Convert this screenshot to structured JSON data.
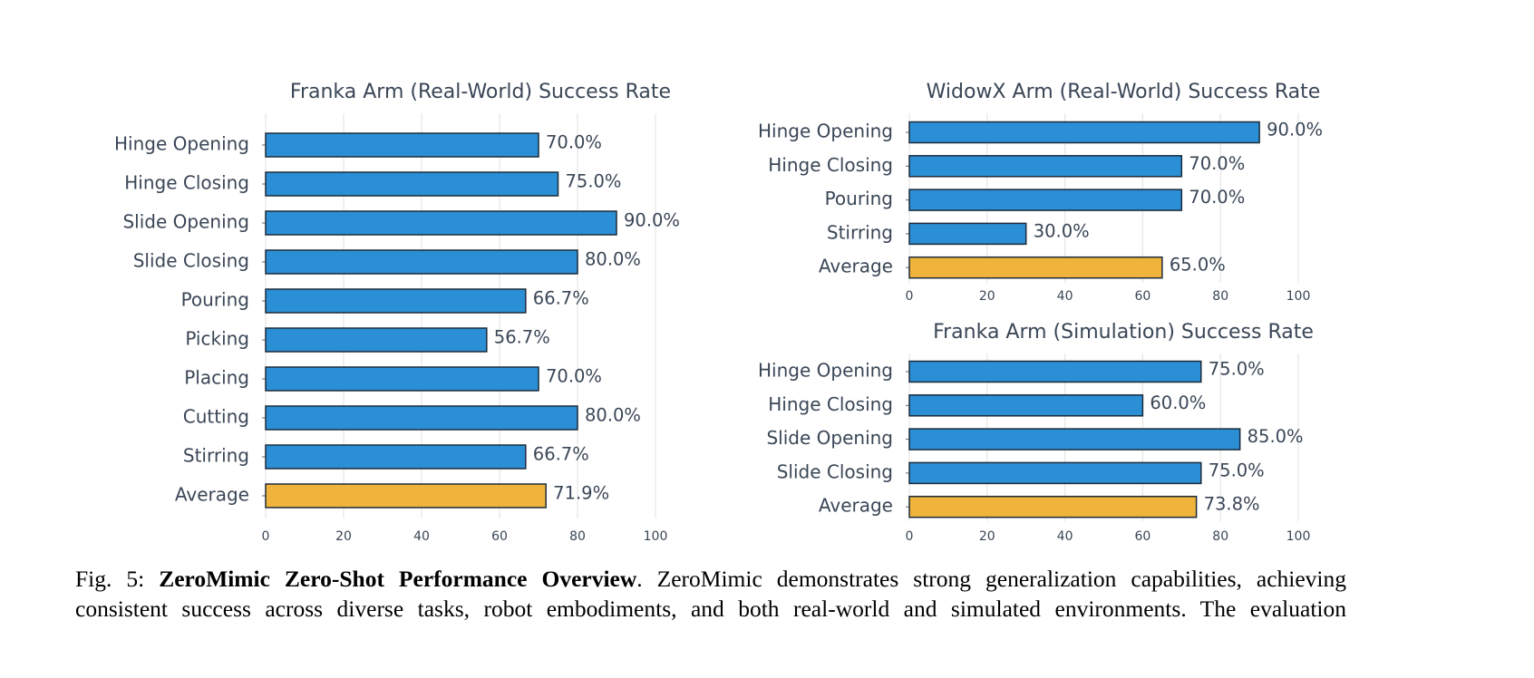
{
  "chart_data": [
    {
      "type": "barh",
      "title": "Franka Arm (Real-World) Success Rate",
      "categories": [
        "Hinge Opening",
        "Hinge Closing",
        "Slide Opening",
        "Slide Closing",
        "Pouring",
        "Picking",
        "Placing",
        "Cutting",
        "Stirring",
        "Average"
      ],
      "values": [
        70,
        75,
        90,
        80,
        66.7,
        56.7,
        70,
        80,
        66.7,
        71.9
      ],
      "value_labels": [
        "70.0%",
        "75.0%",
        "90.0%",
        "80.0%",
        "66.7%",
        "56.7%",
        "70.0%",
        "80.0%",
        "66.7%",
        "71.9%"
      ],
      "colors": [
        "#2b8fd6",
        "#2b8fd6",
        "#2b8fd6",
        "#2b8fd6",
        "#2b8fd6",
        "#2b8fd6",
        "#2b8fd6",
        "#2b8fd6",
        "#2b8fd6",
        "#f0b43c"
      ],
      "xlim": [
        0,
        100
      ],
      "xticks": [
        0,
        20,
        40,
        60,
        80,
        100
      ],
      "grid": true
    },
    {
      "type": "barh",
      "title": "WidowX Arm (Real-World) Success Rate",
      "categories": [
        "Hinge Opening",
        "Hinge Closing",
        "Pouring",
        "Stirring",
        "Average"
      ],
      "values": [
        90,
        70,
        70,
        30,
        65
      ],
      "value_labels": [
        "90.0%",
        "70.0%",
        "70.0%",
        "30.0%",
        "65.0%"
      ],
      "colors": [
        "#2b8fd6",
        "#2b8fd6",
        "#2b8fd6",
        "#2b8fd6",
        "#f0b43c"
      ],
      "xlim": [
        0,
        100
      ],
      "xticks": [
        0,
        20,
        40,
        60,
        80,
        100
      ],
      "grid": true
    },
    {
      "type": "barh",
      "title": "Franka Arm (Simulation) Success Rate",
      "categories": [
        "Hinge Opening",
        "Hinge Closing",
        "Slide Opening",
        "Slide Closing",
        "Average"
      ],
      "values": [
        75,
        60,
        85,
        75,
        73.8
      ],
      "value_labels": [
        "75.0%",
        "60.0%",
        "85.0%",
        "75.0%",
        "73.8%"
      ],
      "colors": [
        "#2b8fd6",
        "#2b8fd6",
        "#2b8fd6",
        "#2b8fd6",
        "#f0b43c"
      ],
      "xlim": [
        0,
        100
      ],
      "xticks": [
        0,
        20,
        40,
        60,
        80,
        100
      ],
      "grid": true
    }
  ],
  "caption": {
    "label": "Fig. 5:",
    "title": "ZeroMimic Zero-Shot Performance Overview",
    "text": ". ZeroMimic demonstrates strong generalization capabilities, achieving consistent success across diverse tasks, robot embodiments, and both real-world and simulated environments. The evaluation"
  }
}
